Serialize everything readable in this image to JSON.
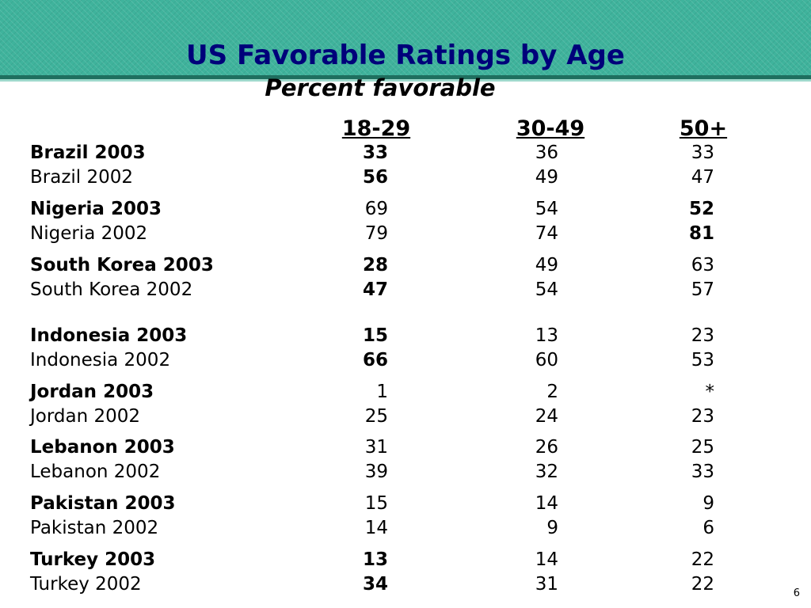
{
  "slide": {
    "title": "US Favorable Ratings by Age",
    "subtitle": "Percent favorable",
    "page_number": "6",
    "colors": {
      "banner": "#3fb39c",
      "title": "#00007a"
    }
  },
  "table": {
    "columns": [
      "18-29",
      "30-49",
      "50+"
    ],
    "rows": [
      {
        "label": "Brazil 2003",
        "values": [
          "33",
          "36",
          "33"
        ]
      },
      {
        "label": "Brazil 2002",
        "values": [
          "56",
          "49",
          "47"
        ]
      },
      {
        "label": "Nigeria 2003",
        "values": [
          "69",
          "54",
          "52"
        ]
      },
      {
        "label": "Nigeria 2002",
        "values": [
          "79",
          "74",
          "81"
        ]
      },
      {
        "label": "South Korea 2003",
        "values": [
          "28",
          "49",
          "63"
        ]
      },
      {
        "label": "South Korea 2002",
        "values": [
          "47",
          "54",
          "57"
        ]
      },
      {
        "label": "Indonesia 2003",
        "values": [
          "15",
          "13",
          "23"
        ]
      },
      {
        "label": "Indonesia 2002",
        "values": [
          "66",
          "60",
          "53"
        ]
      },
      {
        "label": "Jordan 2003",
        "values": [
          "1",
          "2",
          "*"
        ]
      },
      {
        "label": "Jordan 2002",
        "values": [
          "25",
          "24",
          "23"
        ]
      },
      {
        "label": "Lebanon 2003",
        "values": [
          "31",
          "26",
          "25"
        ]
      },
      {
        "label": "Lebanon 2002",
        "values": [
          "39",
          "32",
          "33"
        ]
      },
      {
        "label": "Pakistan 2003",
        "values": [
          "15",
          "14",
          "9"
        ]
      },
      {
        "label": "Pakistan 2002",
        "values": [
          "14",
          "9",
          "6"
        ]
      },
      {
        "label": "Turkey 2003",
        "values": [
          "13",
          "14",
          "22"
        ]
      },
      {
        "label": "Turkey 2002",
        "values": [
          "34",
          "31",
          "22"
        ]
      }
    ]
  }
}
